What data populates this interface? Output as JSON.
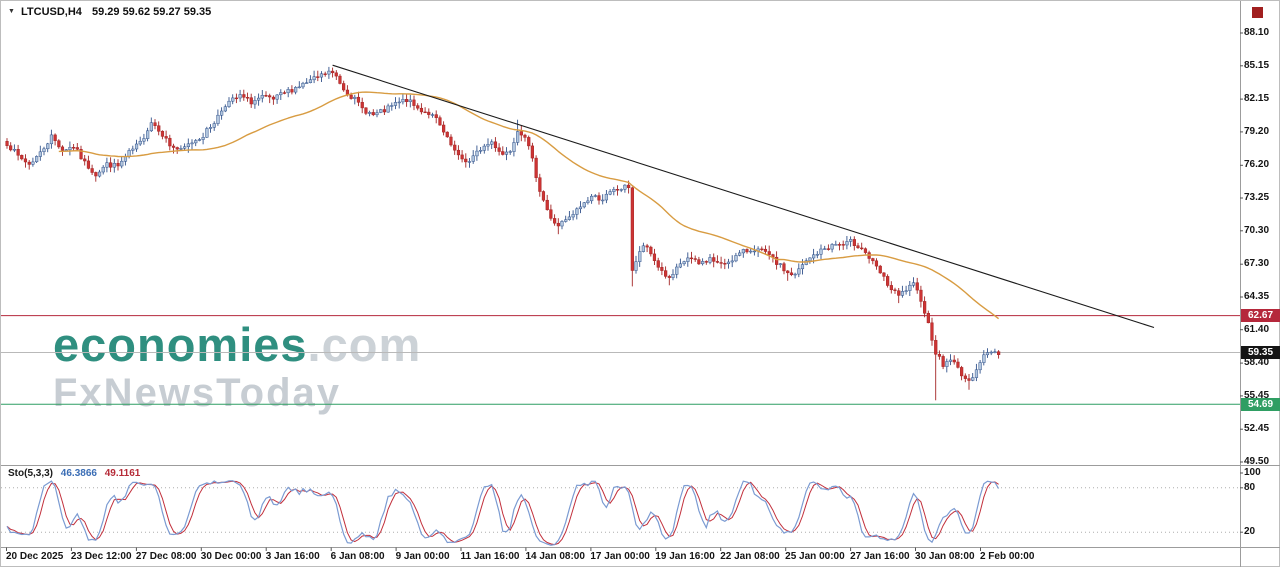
{
  "header": {
    "symbol_timeframe": "LTCUSD,H4",
    "ohlc": "59.29 59.62 59.27 59.35"
  },
  "watermark": {
    "brand": "economies",
    "domain": ".com",
    "tagline": "FxNewsToday"
  },
  "indicator": {
    "name": "Sto(5,3,3)",
    "value_main": "46.3866",
    "value_signal": "49.1161",
    "levels": [
      "100",
      "80",
      "20"
    ]
  },
  "price_axis": {
    "labels": [
      "88.10",
      "85.15",
      "82.15",
      "79.20",
      "76.20",
      "73.25",
      "70.30",
      "67.30",
      "64.35",
      "61.40",
      "58.40",
      "55.45",
      "52.45",
      "49.50"
    ]
  },
  "time_axis": {
    "labels": [
      "20 Dec 2025",
      "23 Dec 12:00",
      "27 Dec 08:00",
      "30 Dec 00:00",
      "3 Jan 16:00",
      "6 Jan 08:00",
      "9 Jan 00:00",
      "11 Jan 16:00",
      "14 Jan 08:00",
      "17 Jan 00:00",
      "19 Jan 16:00",
      "22 Jan 08:00",
      "25 Jan 00:00",
      "27 Jan 16:00",
      "30 Jan 08:00",
      "2 Feb 00:00"
    ]
  },
  "levels": {
    "resistance": {
      "label": "62.67",
      "value": 62.67,
      "color": "#b5283b"
    },
    "current": {
      "label": "59.35",
      "value": 59.35,
      "color": "#151515",
      "line_color": "#b9b9b9"
    },
    "support": {
      "label": "54.69",
      "value": 54.69,
      "color": "#2f9e63"
    }
  },
  "chart_data": {
    "type": "candlestick",
    "title": "LTCUSD H4",
    "current_quote": {
      "open": "59.29",
      "high": "59.62",
      "low": "59.27",
      "close": "59.35"
    },
    "ylim": [
      49.5,
      88.1
    ],
    "y_ticks": [
      88.1,
      85.15,
      82.15,
      79.2,
      76.2,
      73.25,
      70.3,
      67.3,
      64.35,
      61.4,
      58.4,
      55.45,
      52.45,
      49.5
    ],
    "x_ticks": [
      "20 Dec 2025",
      "23 Dec 12:00",
      "27 Dec 08:00",
      "30 Dec 00:00",
      "3 Jan 16:00",
      "6 Jan 08:00",
      "9 Jan 00:00",
      "11 Jan 16:00",
      "14 Jan 08:00",
      "17 Jan 00:00",
      "19 Jan 16:00",
      "22 Jan 08:00",
      "25 Jan 00:00",
      "27 Jan 16:00",
      "30 Jan 08:00",
      "2 Feb 00:00"
    ],
    "hlines": [
      {
        "value": 62.67,
        "color": "#b5283b"
      },
      {
        "value": 59.35,
        "color": "#b9b9b9"
      },
      {
        "value": 54.69,
        "color": "#2f9e63"
      }
    ],
    "candle_colors": {
      "bull_body": "#b3c7df",
      "bull_border": "#31528b",
      "bear_body": "#cd3434",
      "bear_border": "#a32424"
    },
    "series": [
      {
        "name": "LTCUSD",
        "kind": "ohlc",
        "bars": 269,
        "price_waypoints": [
          [
            0,
            78.2
          ],
          [
            3,
            77.0
          ],
          [
            6,
            76.3
          ],
          [
            9,
            77.3
          ],
          [
            12,
            78.8
          ],
          [
            15,
            77.6
          ],
          [
            18,
            77.9
          ],
          [
            21,
            76.4
          ],
          [
            24,
            75.4
          ],
          [
            27,
            76.3
          ],
          [
            30,
            76.1
          ],
          [
            33,
            77.3
          ],
          [
            36,
            78.2
          ],
          [
            39,
            80.1
          ],
          [
            41,
            79.5
          ],
          [
            44,
            78.0
          ],
          [
            47,
            77.5
          ],
          [
            50,
            78.3
          ],
          [
            53,
            78.9
          ],
          [
            56,
            80.1
          ],
          [
            59,
            81.7
          ],
          [
            63,
            82.4
          ],
          [
            66,
            81.9
          ],
          [
            69,
            82.3
          ],
          [
            72,
            82.1
          ],
          [
            75,
            82.7
          ],
          [
            78,
            83.2
          ],
          [
            81,
            83.6
          ],
          [
            84,
            84.1
          ],
          [
            87,
            84.6
          ],
          [
            89,
            84.2
          ],
          [
            91,
            83.1
          ],
          [
            94,
            82.1
          ],
          [
            96,
            81.3
          ],
          [
            99,
            80.7
          ],
          [
            102,
            81.1
          ],
          [
            105,
            81.7
          ],
          [
            108,
            82.1
          ],
          [
            111,
            81.3
          ],
          [
            114,
            80.9
          ],
          [
            116,
            80.3
          ],
          [
            119,
            78.5
          ],
          [
            122,
            76.9
          ],
          [
            125,
            76.5
          ],
          [
            128,
            77.7
          ],
          [
            131,
            78.3
          ],
          [
            134,
            77.2
          ],
          [
            136,
            77.6
          ],
          [
            138,
            79.4
          ],
          [
            140,
            78.9
          ],
          [
            142,
            76.6
          ],
          [
            144,
            74.0
          ],
          [
            147,
            71.3
          ],
          [
            149,
            70.8
          ],
          [
            152,
            71.4
          ],
          [
            155,
            72.5
          ],
          [
            158,
            73.4
          ],
          [
            161,
            73.2
          ],
          [
            164,
            73.9
          ],
          [
            168,
            74.3
          ],
          [
            169,
            66.8
          ],
          [
            172,
            69.0
          ],
          [
            174,
            68.2
          ],
          [
            176,
            67.1
          ],
          [
            179,
            65.9
          ],
          [
            181,
            66.8
          ],
          [
            184,
            67.9
          ],
          [
            187,
            67.3
          ],
          [
            190,
            67.8
          ],
          [
            193,
            67.2
          ],
          [
            196,
            67.8
          ],
          [
            199,
            68.4
          ],
          [
            202,
            68.7
          ],
          [
            205,
            68.3
          ],
          [
            208,
            67.4
          ],
          [
            211,
            66.5
          ],
          [
            213,
            66.3
          ],
          [
            215,
            67.2
          ],
          [
            218,
            68.1
          ],
          [
            221,
            68.7
          ],
          [
            224,
            69.1
          ],
          [
            226,
            69.0
          ],
          [
            228,
            69.3
          ],
          [
            231,
            68.8
          ],
          [
            234,
            67.4
          ],
          [
            236,
            66.5
          ],
          [
            239,
            65.0
          ],
          [
            241,
            64.4
          ],
          [
            243,
            65.0
          ],
          [
            245,
            65.4
          ],
          [
            247,
            64.2
          ],
          [
            249,
            61.9
          ],
          [
            251,
            59.4
          ],
          [
            253,
            58.2
          ],
          [
            255,
            58.8
          ],
          [
            257,
            57.9
          ],
          [
            260,
            56.6
          ],
          [
            262,
            58.0
          ],
          [
            264,
            59.0
          ],
          [
            266,
            59.5
          ],
          [
            268,
            59.35
          ]
        ],
        "spikes": [
          {
            "i": 12,
            "high": 79.4
          },
          {
            "i": 39,
            "high": 80.5
          },
          {
            "i": 87,
            "high": 85.05
          },
          {
            "i": 138,
            "high": 80.3
          },
          {
            "i": 149,
            "low": 70.0
          },
          {
            "i": 169,
            "low": 65.3
          },
          {
            "i": 179,
            "low": 65.4
          },
          {
            "i": 211,
            "low": 65.8
          },
          {
            "i": 228,
            "high": 69.8
          },
          {
            "i": 241,
            "low": 63.8
          },
          {
            "i": 251,
            "low": 55.05
          },
          {
            "i": 260,
            "low": 56.0
          }
        ]
      },
      {
        "name": "Moving Average",
        "kind": "sma",
        "period": 40,
        "color": "#d89c42"
      },
      {
        "name": "Descending trendline",
        "kind": "line",
        "from": [
          88,
          85.2
        ],
        "to": [
          310,
          61.6
        ],
        "color": "#1b1b1b"
      },
      {
        "name": "Stochastic",
        "kind": "stochastic",
        "k": 5,
        "slowing": 3,
        "d": 3,
        "last_main": 46.3866,
        "last_signal": 49.1161,
        "range": [
          0,
          100
        ],
        "levels": [
          80,
          20
        ],
        "main_color": "#7b9bd2",
        "signal_color": "#c2303c"
      }
    ]
  }
}
